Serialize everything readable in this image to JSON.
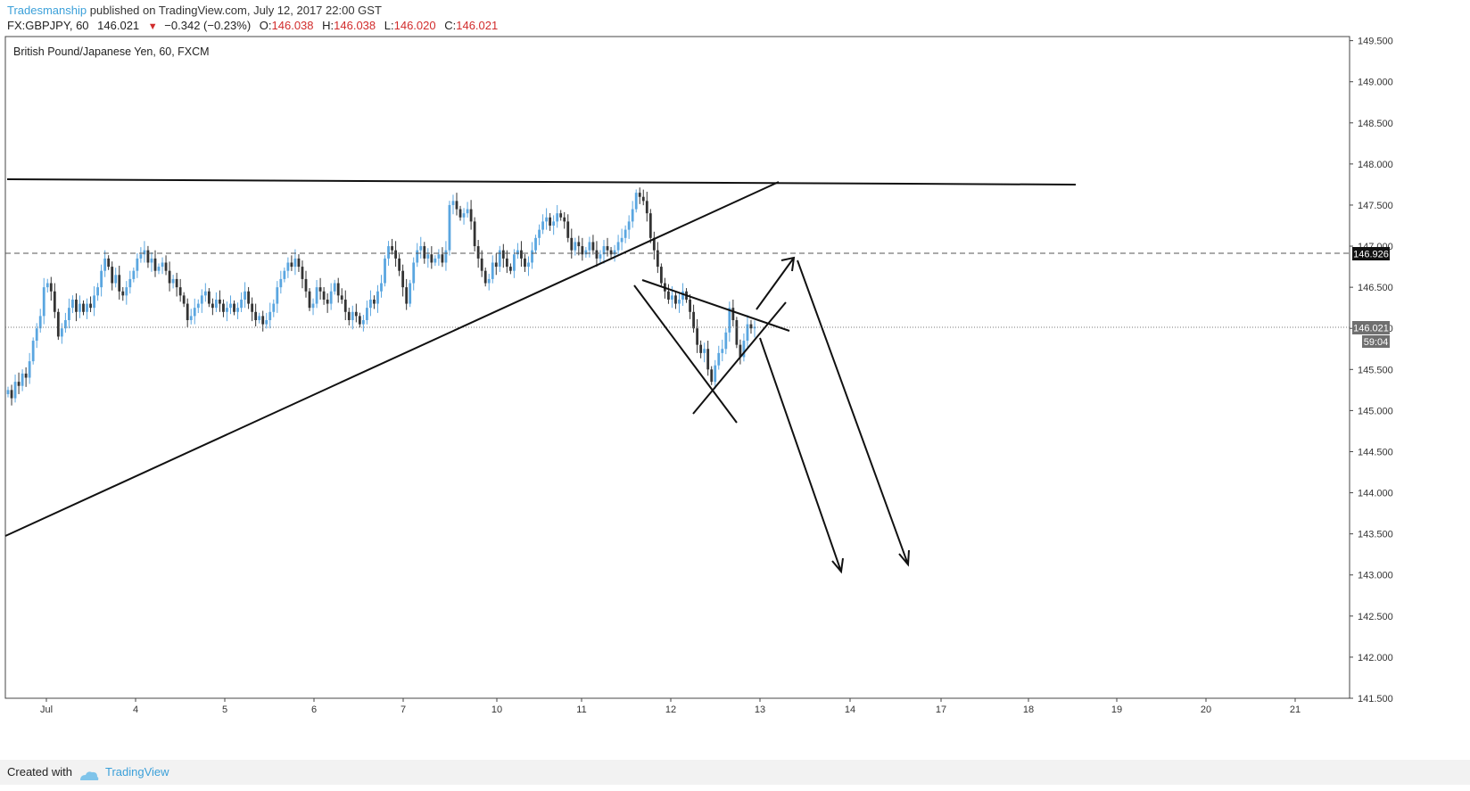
{
  "header": {
    "author": "Tradesmanship",
    "published_text": "published on TradingView.com, July 12, 2017 22:00 GST",
    "symbol_interval": "FX:GBPJPY, 60",
    "last": "146.021",
    "change": "−0.342 (−0.23%)",
    "open_label": "O:",
    "open": "146.038",
    "high_label": "H:",
    "high": "146.038",
    "low_label": "L:",
    "low": "146.020",
    "close_label": "C:",
    "close": "146.021"
  },
  "footer": {
    "created_with": "Created with",
    "brand": "TradingView"
  },
  "chart_data": {
    "type": "candlestick",
    "title": "British Pound/Japanese Yen, 60, FXCM",
    "ylim": [
      141.5,
      149.55
    ],
    "y_ticks": [
      "149.500",
      "149.000",
      "148.500",
      "148.000",
      "147.500",
      "147.000",
      "146.500",
      "146.000",
      "145.500",
      "145.000",
      "144.500",
      "144.000",
      "143.500",
      "143.000",
      "142.500",
      "142.000",
      "141.500"
    ],
    "x_ticks": [
      "Jul",
      "4",
      "5",
      "6",
      "7",
      "10",
      "11",
      "12",
      "13",
      "14",
      "17",
      "18",
      "19",
      "20",
      "21"
    ],
    "price_labels": {
      "level_line": "146.926",
      "last_price": "146.021",
      "countdown": "59:04"
    },
    "colors": {
      "up": "#5aa6e0",
      "down": "#333333",
      "level": "#555555",
      "drawing": "#111111",
      "axis": "#444444"
    },
    "candles_close": [
      145.25,
      145.15,
      145.35,
      145.3,
      145.45,
      145.4,
      145.6,
      145.85,
      146.0,
      146.15,
      146.5,
      146.55,
      146.45,
      146.2,
      145.9,
      146.0,
      146.1,
      146.25,
      146.35,
      146.2,
      146.3,
      146.2,
      146.3,
      146.25,
      146.4,
      146.5,
      146.7,
      146.85,
      146.75,
      146.55,
      146.65,
      146.45,
      146.4,
      146.5,
      146.6,
      146.7,
      146.85,
      146.9,
      146.95,
      146.8,
      146.85,
      146.7,
      146.75,
      146.8,
      146.7,
      146.55,
      146.6,
      146.5,
      146.4,
      146.3,
      146.1,
      146.15,
      146.25,
      146.3,
      146.4,
      146.45,
      146.3,
      146.25,
      146.35,
      146.3,
      146.2,
      146.25,
      146.3,
      146.2,
      146.25,
      146.35,
      146.45,
      146.3,
      146.2,
      146.1,
      146.15,
      146.05,
      146.1,
      146.2,
      146.3,
      146.5,
      146.6,
      146.7,
      146.8,
      146.75,
      146.85,
      146.75,
      146.6,
      146.45,
      146.25,
      146.3,
      146.5,
      146.45,
      146.35,
      146.3,
      146.45,
      146.55,
      146.4,
      146.35,
      146.2,
      146.1,
      146.2,
      146.15,
      146.05,
      146.1,
      146.25,
      146.35,
      146.3,
      146.45,
      146.55,
      146.85,
      147.0,
      146.95,
      146.85,
      146.7,
      146.5,
      146.3,
      146.55,
      146.8,
      146.95,
      147.0,
      146.85,
      146.9,
      146.8,
      146.85,
      146.9,
      146.8,
      146.95,
      147.5,
      147.55,
      147.45,
      147.35,
      147.4,
      147.45,
      147.3,
      147.0,
      146.85,
      146.7,
      146.55,
      146.6,
      146.8,
      146.75,
      146.95,
      146.85,
      146.75,
      146.7,
      146.9,
      146.95,
      146.85,
      146.75,
      146.8,
      146.95,
      147.1,
      147.2,
      147.3,
      147.35,
      147.25,
      147.3,
      147.4,
      147.35,
      147.3,
      147.1,
      146.95,
      147.05,
      147.0,
      146.9,
      146.95,
      147.05,
      146.95,
      146.85,
      146.9,
      147.0,
      146.95,
      146.9,
      146.95,
      147.05,
      147.1,
      147.2,
      147.3,
      147.45,
      147.65,
      147.6,
      147.55,
      147.4,
      147.1,
      146.95,
      146.75,
      146.55,
      146.45,
      146.35,
      146.4,
      146.3,
      146.35,
      146.45,
      146.35,
      146.2,
      146.0,
      145.8,
      145.7,
      145.75,
      145.5,
      145.35,
      145.55,
      145.7,
      145.75,
      145.95,
      146.25,
      146.1,
      145.8,
      145.65,
      145.85,
      146.05,
      146.0,
      146.02
    ]
  }
}
